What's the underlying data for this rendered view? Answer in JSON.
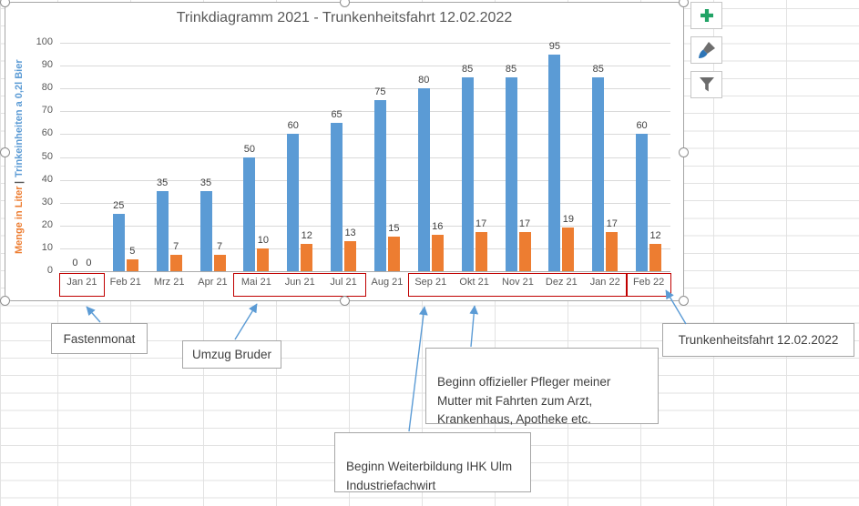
{
  "chart_data": {
    "type": "bar",
    "title": "Trinkdiagramm 2021 - Trunkenheitsfahrt 12.02.2022",
    "categories": [
      "Jan 21",
      "Feb 21",
      "Mrz 21",
      "Apr 21",
      "Mai 21",
      "Jun 21",
      "Jul 21",
      "Aug 21",
      "Sep 21",
      "Okt 21",
      "Nov 21",
      "Dez 21",
      "Jan 22",
      "Feb 22"
    ],
    "series": [
      {
        "name": "Trinkeinheiten a 0,2l Bier",
        "color": "#5B9BD5",
        "values": [
          0,
          25,
          35,
          35,
          50,
          60,
          65,
          75,
          80,
          85,
          85,
          95,
          85,
          60
        ]
      },
      {
        "name": "Menge in Liter",
        "color": "#ED7D31",
        "values": [
          0,
          5,
          7,
          7,
          10,
          12,
          13,
          15,
          16,
          17,
          17,
          19,
          17,
          12
        ]
      }
    ],
    "ylabel_parts": {
      "liters": "Menge in Liter",
      "separator": "|",
      "units": "Trinkeinheiten a 0,2l Bier"
    },
    "ylabel_colors": {
      "liters": "#ED7D31",
      "separator": "#595959",
      "units": "#5B9BD5"
    },
    "ylim": [
      0,
      100
    ],
    "yticks": [
      0,
      10,
      20,
      30,
      40,
      50,
      60,
      70,
      80,
      90,
      100
    ],
    "grid": true,
    "legend": "none",
    "data_labels": true,
    "highlight_color": "#C00000",
    "highlighted_ranges": [
      {
        "from": "Jan 21",
        "to": "Jan 21"
      },
      {
        "from": "Mai 21",
        "to": "Jul 21"
      },
      {
        "from": "Sep 21",
        "to": "Jan 22"
      },
      {
        "from": "Feb 22",
        "to": "Feb 22"
      }
    ]
  },
  "annotations": [
    {
      "id": "fastenmonat",
      "text": "Fastenmonat"
    },
    {
      "id": "umzug-bruder",
      "text": "Umzug Bruder"
    },
    {
      "id": "pfleger",
      "text": "Beginn offizieller Pfleger meiner\nMutter mit Fahrten zum Arzt,\nKrankenhaus, Apotheke etc."
    },
    {
      "id": "weiterbildung",
      "text": "Beginn Weiterbildung IHK Ulm\nIndustriefachwirt"
    },
    {
      "id": "trunkenheitsfahrt",
      "text": "Trunkenheitsfahrt 12.02.2022"
    }
  ],
  "chart_tools": {
    "buttons": [
      {
        "name": "chart-elements",
        "icon": "plus-icon"
      },
      {
        "name": "chart-styles",
        "icon": "paintbrush-icon"
      },
      {
        "name": "chart-filters",
        "icon": "funnel-icon"
      }
    ],
    "plus_color": "#21A366",
    "arrow_color": "#5B9BD5"
  }
}
